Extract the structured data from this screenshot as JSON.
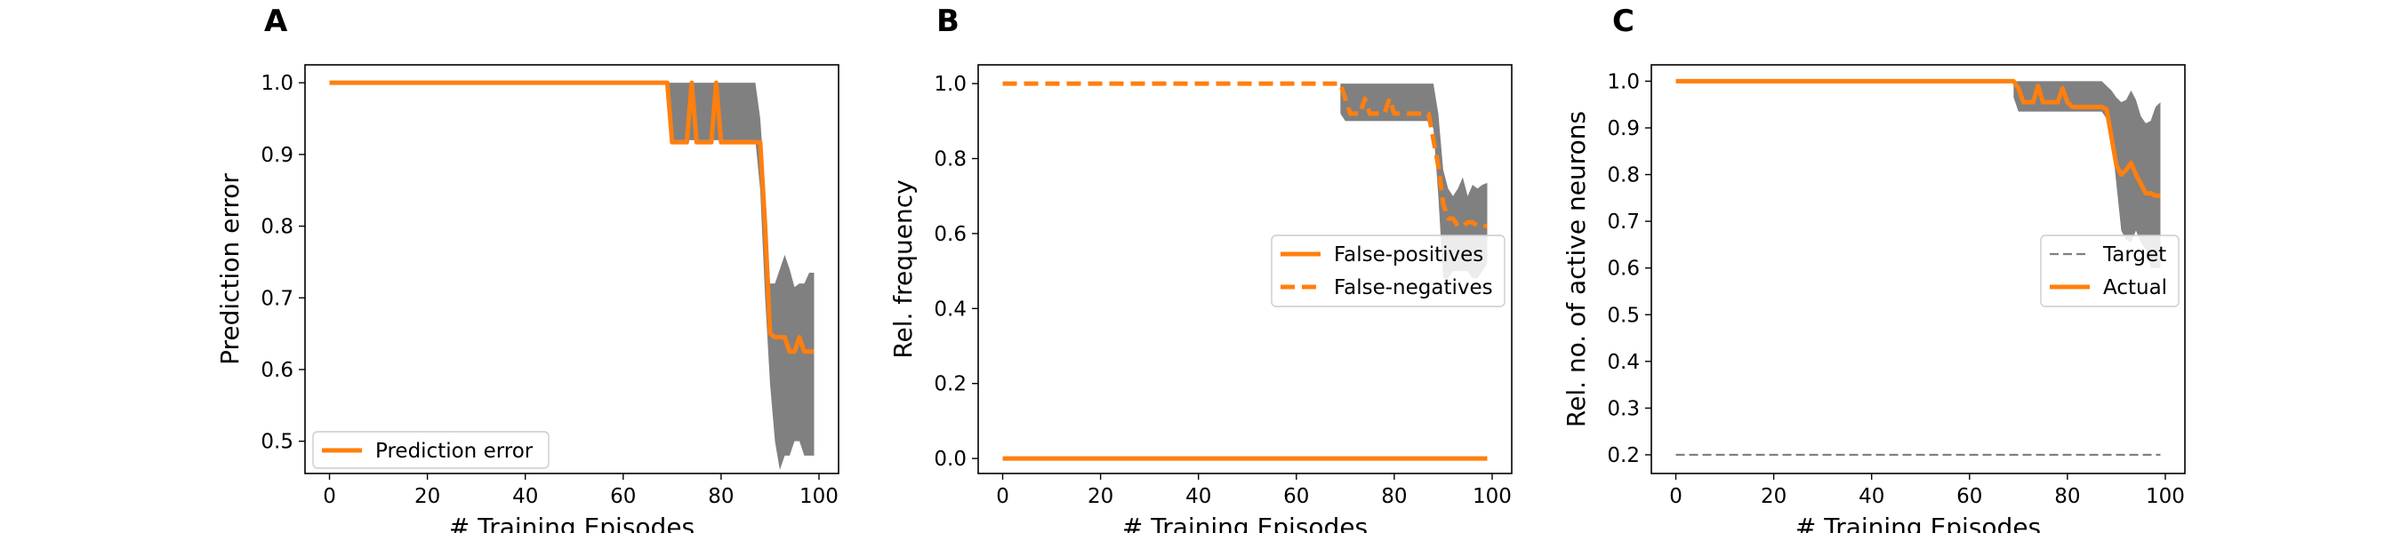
{
  "chart_data": [
    {
      "panel_label": "A",
      "type": "line",
      "xlabel": "# Training Episodes",
      "ylabel": "Prediction error",
      "xlim": [
        -5,
        104
      ],
      "ylim": [
        0.455,
        1.025
      ],
      "xticks": [
        0,
        20,
        40,
        60,
        80,
        100
      ],
      "yticks": [
        0.5,
        0.6,
        0.7,
        0.8,
        0.9,
        1.0
      ],
      "ytick_labels": [
        "0.5",
        "0.6",
        "0.7",
        "0.8",
        "0.9",
        "1.0"
      ],
      "grid": false,
      "legend_position": "lower-left",
      "band_color": "#808080",
      "band": {
        "x": [
          69,
          70,
          71,
          72,
          73,
          74,
          75,
          76,
          77,
          78,
          79,
          80,
          81,
          82,
          83,
          84,
          85,
          86,
          87,
          88,
          89,
          90,
          91,
          92,
          93,
          94,
          95,
          96,
          97,
          98,
          99
        ],
        "upper": [
          1.0,
          1.0,
          1.0,
          1.0,
          1.0,
          1.0,
          1.0,
          1.0,
          1.0,
          1.0,
          1.0,
          1.0,
          1.0,
          1.0,
          1.0,
          1.0,
          1.0,
          1.0,
          1.0,
          0.95,
          0.85,
          0.72,
          0.72,
          0.74,
          0.76,
          0.74,
          0.715,
          0.72,
          0.72,
          0.735,
          0.735
        ],
        "lower": [
          0.98,
          0.92,
          0.92,
          0.92,
          0.92,
          0.92,
          0.92,
          0.92,
          0.92,
          0.92,
          0.92,
          0.92,
          0.92,
          0.92,
          0.92,
          0.92,
          0.92,
          0.92,
          0.92,
          0.85,
          0.7,
          0.58,
          0.5,
          0.46,
          0.48,
          0.48,
          0.5,
          0.5,
          0.48,
          0.48,
          0.48
        ]
      },
      "series": [
        {
          "name": "Prediction error",
          "color": "#ff7f0e",
          "dash": "solid",
          "x": [
            0,
            69,
            70,
            71,
            72,
            73,
            74,
            75,
            76,
            77,
            78,
            79,
            80,
            81,
            82,
            83,
            84,
            85,
            86,
            87,
            88,
            89,
            90,
            91,
            92,
            93,
            94,
            95,
            96,
            97,
            98,
            99
          ],
          "y": [
            1.0,
            1.0,
            0.917,
            0.917,
            0.917,
            0.917,
            1.0,
            0.917,
            0.917,
            0.917,
            0.917,
            1.0,
            0.917,
            0.917,
            0.917,
            0.917,
            0.917,
            0.917,
            0.917,
            0.917,
            0.917,
            0.8,
            0.65,
            0.645,
            0.645,
            0.645,
            0.625,
            0.625,
            0.645,
            0.625,
            0.625,
            0.625
          ]
        }
      ]
    },
    {
      "panel_label": "B",
      "type": "line",
      "xlabel": "# Training Episodes",
      "ylabel": "Rel. frequency",
      "xlim": [
        -5,
        104
      ],
      "ylim": [
        -0.04,
        1.05
      ],
      "xticks": [
        0,
        20,
        40,
        60,
        80,
        100
      ],
      "yticks": [
        0.0,
        0.2,
        0.4,
        0.6,
        0.8,
        1.0
      ],
      "ytick_labels": [
        "0.0",
        "0.2",
        "0.4",
        "0.6",
        "0.8",
        "1.0"
      ],
      "grid": false,
      "legend_position": "center-right",
      "band_color": "#808080",
      "band": {
        "x": [
          69,
          70,
          71,
          72,
          73,
          74,
          75,
          76,
          77,
          78,
          79,
          80,
          81,
          82,
          83,
          84,
          85,
          86,
          87,
          88,
          89,
          90,
          91,
          92,
          93,
          94,
          95,
          96,
          97,
          98,
          99
        ],
        "upper": [
          1.0,
          1.0,
          1.0,
          1.0,
          1.0,
          1.0,
          1.0,
          1.0,
          1.0,
          1.0,
          1.0,
          1.0,
          1.0,
          1.0,
          1.0,
          1.0,
          1.0,
          1.0,
          1.0,
          1.0,
          0.92,
          0.77,
          0.72,
          0.7,
          0.72,
          0.75,
          0.7,
          0.73,
          0.72,
          0.73,
          0.735
        ],
        "lower": [
          0.92,
          0.9,
          0.9,
          0.9,
          0.9,
          0.9,
          0.9,
          0.9,
          0.9,
          0.9,
          0.9,
          0.9,
          0.9,
          0.9,
          0.9,
          0.9,
          0.9,
          0.9,
          0.9,
          0.88,
          0.7,
          0.48,
          0.48,
          0.5,
          0.5,
          0.5,
          0.5,
          0.48,
          0.48,
          0.5,
          0.52
        ]
      },
      "series": [
        {
          "name": "False-positives",
          "color": "#ff7f0e",
          "dash": "solid",
          "x": [
            0,
            99
          ],
          "y": [
            0.0,
            0.0
          ]
        },
        {
          "name": "False-negatives",
          "color": "#ff7f0e",
          "dash": "dashed",
          "x": [
            0,
            69,
            70,
            71,
            72,
            73,
            74,
            75,
            76,
            77,
            78,
            79,
            80,
            81,
            82,
            83,
            84,
            85,
            86,
            87,
            88,
            89,
            90,
            91,
            92,
            93,
            94,
            95,
            96,
            97,
            98,
            99
          ],
          "y": [
            1.0,
            1.0,
            0.96,
            0.92,
            0.92,
            0.92,
            0.96,
            0.92,
            0.92,
            0.92,
            0.92,
            0.96,
            0.92,
            0.92,
            0.92,
            0.92,
            0.92,
            0.92,
            0.92,
            0.92,
            0.85,
            0.78,
            0.68,
            0.64,
            0.64,
            0.62,
            0.62,
            0.63,
            0.63,
            0.62,
            0.62,
            0.62
          ]
        }
      ]
    },
    {
      "panel_label": "C",
      "type": "line",
      "xlabel": "# Training Episodes",
      "ylabel": "Rel. no. of active neurons",
      "xlim": [
        -5,
        104
      ],
      "ylim": [
        0.16,
        1.035
      ],
      "xticks": [
        0,
        20,
        40,
        60,
        80,
        100
      ],
      "yticks": [
        0.2,
        0.3,
        0.4,
        0.5,
        0.6,
        0.7,
        0.8,
        0.9,
        1.0
      ],
      "ytick_labels": [
        "0.2",
        "0.3",
        "0.4",
        "0.5",
        "0.6",
        "0.7",
        "0.8",
        "0.9",
        "1.0"
      ],
      "grid": false,
      "legend_position": "center-right",
      "band_color": "#808080",
      "band": {
        "x": [
          69,
          70,
          71,
          72,
          73,
          74,
          75,
          76,
          77,
          78,
          79,
          80,
          81,
          82,
          83,
          84,
          85,
          86,
          87,
          88,
          89,
          90,
          91,
          92,
          93,
          94,
          95,
          96,
          97,
          98,
          99
        ],
        "upper": [
          1.0,
          1.0,
          1.0,
          1.0,
          1.0,
          1.0,
          1.0,
          1.0,
          1.0,
          1.0,
          1.0,
          1.0,
          1.0,
          1.0,
          1.0,
          1.0,
          1.0,
          1.0,
          1.0,
          0.99,
          0.98,
          0.965,
          0.955,
          0.96,
          0.98,
          0.96,
          0.925,
          0.91,
          0.915,
          0.945,
          0.955
        ],
        "lower": [
          0.965,
          0.935,
          0.935,
          0.935,
          0.935,
          0.935,
          0.935,
          0.935,
          0.935,
          0.935,
          0.935,
          0.935,
          0.935,
          0.935,
          0.935,
          0.935,
          0.935,
          0.935,
          0.935,
          0.92,
          0.88,
          0.78,
          0.68,
          0.66,
          0.655,
          0.68,
          0.655,
          0.64,
          0.6,
          0.6,
          0.6
        ]
      },
      "series": [
        {
          "name": "Target",
          "color": "#808080",
          "dash": "dashed",
          "x": [
            0,
            99
          ],
          "y": [
            0.2,
            0.2
          ]
        },
        {
          "name": "Actual",
          "color": "#ff7f0e",
          "dash": "solid",
          "x": [
            0,
            69,
            70,
            71,
            72,
            73,
            74,
            75,
            76,
            77,
            78,
            79,
            80,
            81,
            82,
            83,
            84,
            85,
            86,
            87,
            88,
            89,
            90,
            91,
            92,
            93,
            94,
            95,
            96,
            97,
            98,
            99
          ],
          "y": [
            1.0,
            1.0,
            0.985,
            0.955,
            0.955,
            0.955,
            0.99,
            0.955,
            0.955,
            0.955,
            0.955,
            0.985,
            0.955,
            0.945,
            0.945,
            0.945,
            0.945,
            0.945,
            0.945,
            0.945,
            0.94,
            0.88,
            0.82,
            0.8,
            0.81,
            0.825,
            0.8,
            0.78,
            0.76,
            0.76,
            0.755,
            0.755
          ]
        }
      ]
    }
  ]
}
